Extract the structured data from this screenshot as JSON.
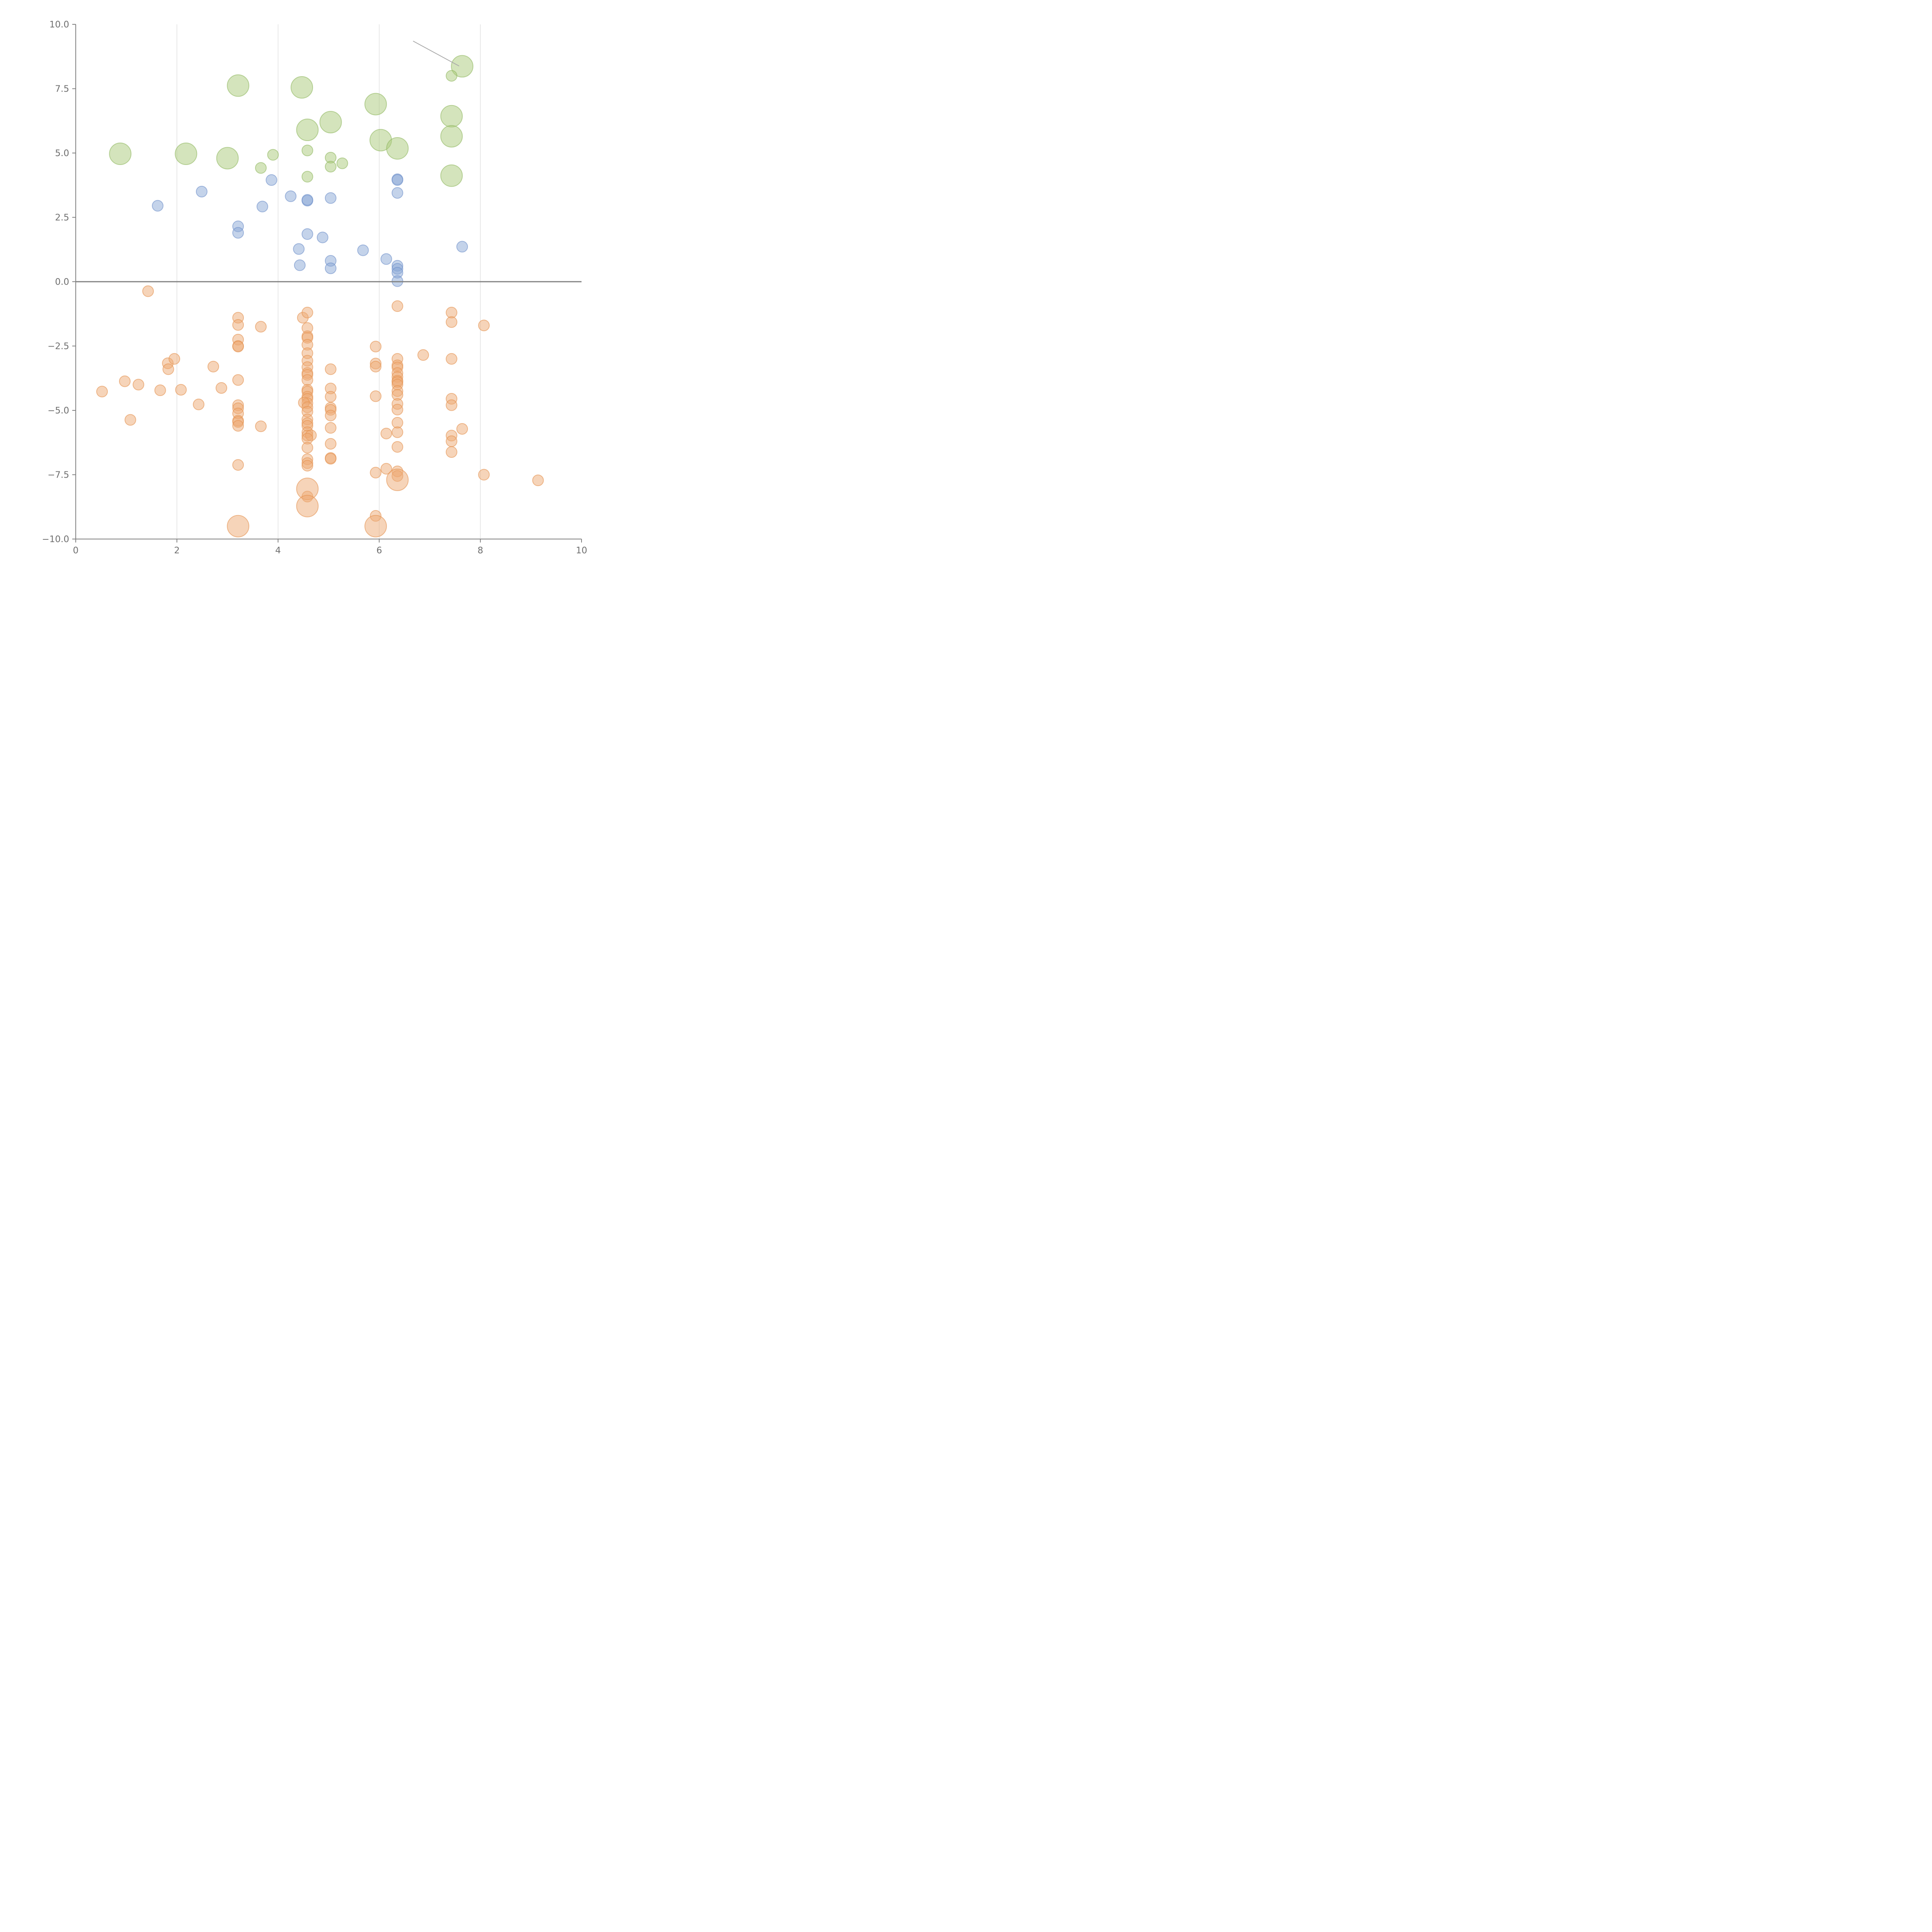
{
  "chart_data": {
    "type": "scatter",
    "title": "",
    "xlabel": "",
    "ylabel": "",
    "xlim": [
      0,
      10
    ],
    "ylim": [
      -10,
      10
    ],
    "grid": "vertical",
    "x_ticks": [
      0,
      2,
      4,
      6,
      8,
      10
    ],
    "y_ticks": [
      10,
      7.5,
      5,
      2.5,
      0,
      -2.5,
      -5,
      -7.5,
      -10
    ],
    "x_tick_labels": [
      "0",
      "2",
      "4",
      "6",
      "8",
      "10"
    ],
    "y_tick_labels": [
      "10.0",
      "7.5",
      "5.0",
      "2.5",
      "0.0",
      "−2.5",
      "−5.0",
      "−7.5",
      "−10.0"
    ],
    "series": [
      {
        "name": "green",
        "fill": "#a9c97a",
        "stroke": "#8fb85f",
        "points": [
          {
            "x": 0.88,
            "y": 4.97,
            "s": 3
          },
          {
            "x": 2.18,
            "y": 4.97,
            "s": 3
          },
          {
            "x": 3.0,
            "y": 4.8,
            "s": 3
          },
          {
            "x": 3.21,
            "y": 7.62,
            "s": 3
          },
          {
            "x": 4.47,
            "y": 7.55,
            "s": 3
          },
          {
            "x": 4.58,
            "y": 5.9,
            "s": 3
          },
          {
            "x": 5.04,
            "y": 6.2,
            "s": 3
          },
          {
            "x": 5.93,
            "y": 6.9,
            "s": 3
          },
          {
            "x": 6.03,
            "y": 5.5,
            "s": 3
          },
          {
            "x": 6.36,
            "y": 5.18,
            "s": 3
          },
          {
            "x": 7.43,
            "y": 6.43,
            "s": 3
          },
          {
            "x": 7.43,
            "y": 5.65,
            "s": 3
          },
          {
            "x": 7.43,
            "y": 4.12,
            "s": 3
          },
          {
            "x": 7.64,
            "y": 8.37,
            "s": 3
          },
          {
            "x": 7.43,
            "y": 8.0,
            "s": 1
          },
          {
            "x": 3.9,
            "y": 4.93,
            "s": 1
          },
          {
            "x": 3.66,
            "y": 4.42,
            "s": 1
          },
          {
            "x": 4.58,
            "y": 5.1,
            "s": 1
          },
          {
            "x": 4.58,
            "y": 4.08,
            "s": 1
          },
          {
            "x": 5.04,
            "y": 4.82,
            "s": 1
          },
          {
            "x": 5.04,
            "y": 4.47,
            "s": 1
          },
          {
            "x": 5.27,
            "y": 4.6,
            "s": 1
          }
        ]
      },
      {
        "name": "blue",
        "fill": "#8aa8d6",
        "stroke": "#6e90c9",
        "points": [
          {
            "x": 1.62,
            "y": 2.95,
            "s": 1
          },
          {
            "x": 2.49,
            "y": 3.5,
            "s": 1
          },
          {
            "x": 3.21,
            "y": 2.15,
            "s": 1
          },
          {
            "x": 3.21,
            "y": 1.9,
            "s": 1
          },
          {
            "x": 3.69,
            "y": 2.92,
            "s": 1
          },
          {
            "x": 3.87,
            "y": 3.95,
            "s": 1
          },
          {
            "x": 4.25,
            "y": 3.32,
            "s": 1
          },
          {
            "x": 4.58,
            "y": 3.15,
            "s": 1
          },
          {
            "x": 4.58,
            "y": 3.18,
            "s": 1
          },
          {
            "x": 4.58,
            "y": 1.85,
            "s": 1
          },
          {
            "x": 4.88,
            "y": 1.72,
            "s": 1
          },
          {
            "x": 4.41,
            "y": 1.27,
            "s": 1
          },
          {
            "x": 4.43,
            "y": 0.64,
            "s": 1
          },
          {
            "x": 5.04,
            "y": 3.25,
            "s": 1
          },
          {
            "x": 5.04,
            "y": 0.81,
            "s": 1
          },
          {
            "x": 5.04,
            "y": 0.52,
            "s": 1
          },
          {
            "x": 5.68,
            "y": 1.22,
            "s": 1
          },
          {
            "x": 6.14,
            "y": 0.88,
            "s": 1
          },
          {
            "x": 6.36,
            "y": 3.98,
            "s": 1
          },
          {
            "x": 6.36,
            "y": 3.95,
            "s": 1
          },
          {
            "x": 6.36,
            "y": 3.45,
            "s": 1
          },
          {
            "x": 6.36,
            "y": 0.62,
            "s": 1
          },
          {
            "x": 6.36,
            "y": 0.5,
            "s": 1
          },
          {
            "x": 6.36,
            "y": 0.35,
            "s": 1
          },
          {
            "x": 6.36,
            "y": 0.02,
            "s": 1
          },
          {
            "x": 7.64,
            "y": 1.36,
            "s": 1
          }
        ]
      },
      {
        "name": "orange",
        "fill": "#eeaa73",
        "stroke": "#e5914f",
        "points": [
          {
            "x": 1.43,
            "y": -0.37,
            "s": 1
          },
          {
            "x": 0.52,
            "y": -4.27,
            "s": 1
          },
          {
            "x": 0.97,
            "y": -3.87,
            "s": 1
          },
          {
            "x": 1.24,
            "y": -4.0,
            "s": 1
          },
          {
            "x": 1.08,
            "y": -5.37,
            "s": 1
          },
          {
            "x": 1.67,
            "y": -4.22,
            "s": 1
          },
          {
            "x": 1.82,
            "y": -3.17,
            "s": 1
          },
          {
            "x": 1.83,
            "y": -3.4,
            "s": 1
          },
          {
            "x": 1.95,
            "y": -3.0,
            "s": 1
          },
          {
            "x": 2.08,
            "y": -4.2,
            "s": 1
          },
          {
            "x": 2.43,
            "y": -4.77,
            "s": 1
          },
          {
            "x": 2.72,
            "y": -3.3,
            "s": 1
          },
          {
            "x": 2.88,
            "y": -4.13,
            "s": 1
          },
          {
            "x": 3.21,
            "y": -1.4,
            "s": 1
          },
          {
            "x": 3.21,
            "y": -1.68,
            "s": 1
          },
          {
            "x": 3.21,
            "y": -2.25,
            "s": 1
          },
          {
            "x": 3.21,
            "y": -2.5,
            "s": 1
          },
          {
            "x": 3.21,
            "y": -2.52,
            "s": 1
          },
          {
            "x": 3.21,
            "y": -3.82,
            "s": 1
          },
          {
            "x": 3.21,
            "y": -4.8,
            "s": 1
          },
          {
            "x": 3.21,
            "y": -4.92,
            "s": 1
          },
          {
            "x": 3.21,
            "y": -5.12,
            "s": 1
          },
          {
            "x": 3.21,
            "y": -5.4,
            "s": 1
          },
          {
            "x": 3.21,
            "y": -5.45,
            "s": 1
          },
          {
            "x": 3.21,
            "y": -5.6,
            "s": 1
          },
          {
            "x": 3.21,
            "y": -7.12,
            "s": 1
          },
          {
            "x": 3.66,
            "y": -1.75,
            "s": 1
          },
          {
            "x": 3.66,
            "y": -5.62,
            "s": 1
          },
          {
            "x": 4.49,
            "y": -1.4,
            "s": 1
          },
          {
            "x": 4.58,
            "y": -1.2,
            "s": 1
          },
          {
            "x": 4.58,
            "y": -1.8,
            "s": 1
          },
          {
            "x": 4.58,
            "y": -2.12,
            "s": 1
          },
          {
            "x": 4.58,
            "y": -2.18,
            "s": 1
          },
          {
            "x": 4.58,
            "y": -2.45,
            "s": 1
          },
          {
            "x": 4.58,
            "y": -2.78,
            "s": 1
          },
          {
            "x": 4.58,
            "y": -3.07,
            "s": 1
          },
          {
            "x": 4.58,
            "y": -3.32,
            "s": 1
          },
          {
            "x": 4.58,
            "y": -3.55,
            "s": 1
          },
          {
            "x": 4.58,
            "y": -3.62,
            "s": 1
          },
          {
            "x": 4.58,
            "y": -3.82,
            "s": 1
          },
          {
            "x": 4.58,
            "y": -4.2,
            "s": 1
          },
          {
            "x": 4.58,
            "y": -4.27,
            "s": 1
          },
          {
            "x": 4.58,
            "y": -4.47,
            "s": 1
          },
          {
            "x": 4.58,
            "y": -4.55,
            "s": 1
          },
          {
            "x": 4.58,
            "y": -4.72,
            "s": 1
          },
          {
            "x": 4.51,
            "y": -4.7,
            "s": 1
          },
          {
            "x": 4.58,
            "y": -4.88,
            "s": 1
          },
          {
            "x": 4.58,
            "y": -5.05,
            "s": 1
          },
          {
            "x": 4.58,
            "y": -5.35,
            "s": 1
          },
          {
            "x": 4.58,
            "y": -5.5,
            "s": 1
          },
          {
            "x": 4.58,
            "y": -5.6,
            "s": 1
          },
          {
            "x": 4.58,
            "y": -5.85,
            "s": 1
          },
          {
            "x": 4.58,
            "y": -5.98,
            "s": 1
          },
          {
            "x": 4.65,
            "y": -5.97,
            "s": 1
          },
          {
            "x": 4.58,
            "y": -6.1,
            "s": 1
          },
          {
            "x": 4.58,
            "y": -6.45,
            "s": 1
          },
          {
            "x": 4.58,
            "y": -6.9,
            "s": 1
          },
          {
            "x": 4.58,
            "y": -7.05,
            "s": 1
          },
          {
            "x": 4.58,
            "y": -7.15,
            "s": 1
          },
          {
            "x": 4.58,
            "y": -8.35,
            "s": 1
          },
          {
            "x": 5.04,
            "y": -3.4,
            "s": 1
          },
          {
            "x": 5.04,
            "y": -4.15,
            "s": 1
          },
          {
            "x": 5.04,
            "y": -4.47,
            "s": 1
          },
          {
            "x": 5.04,
            "y": -4.9,
            "s": 1
          },
          {
            "x": 5.04,
            "y": -4.98,
            "s": 1
          },
          {
            "x": 5.04,
            "y": -5.2,
            "s": 1
          },
          {
            "x": 5.04,
            "y": -5.68,
            "s": 1
          },
          {
            "x": 5.04,
            "y": -6.3,
            "s": 1
          },
          {
            "x": 5.04,
            "y": -6.85,
            "s": 1
          },
          {
            "x": 5.04,
            "y": -6.88,
            "s": 1
          },
          {
            "x": 5.93,
            "y": -2.52,
            "s": 1
          },
          {
            "x": 5.93,
            "y": -3.18,
            "s": 1
          },
          {
            "x": 5.93,
            "y": -3.3,
            "s": 1
          },
          {
            "x": 5.93,
            "y": -4.45,
            "s": 1
          },
          {
            "x": 5.93,
            "y": -7.42,
            "s": 1
          },
          {
            "x": 5.93,
            "y": -9.1,
            "s": 1
          },
          {
            "x": 6.14,
            "y": -5.9,
            "s": 1
          },
          {
            "x": 6.14,
            "y": -7.27,
            "s": 1
          },
          {
            "x": 6.36,
            "y": -0.95,
            "s": 1
          },
          {
            "x": 6.36,
            "y": -3.0,
            "s": 1
          },
          {
            "x": 6.36,
            "y": -3.25,
            "s": 1
          },
          {
            "x": 6.36,
            "y": -3.33,
            "s": 1
          },
          {
            "x": 6.36,
            "y": -3.55,
            "s": 1
          },
          {
            "x": 6.36,
            "y": -3.7,
            "s": 1
          },
          {
            "x": 6.36,
            "y": -3.85,
            "s": 1
          },
          {
            "x": 6.36,
            "y": -3.9,
            "s": 1
          },
          {
            "x": 6.36,
            "y": -4.0,
            "s": 1
          },
          {
            "x": 6.36,
            "y": -4.25,
            "s": 1
          },
          {
            "x": 6.36,
            "y": -4.4,
            "s": 1
          },
          {
            "x": 6.36,
            "y": -4.75,
            "s": 1
          },
          {
            "x": 6.36,
            "y": -4.97,
            "s": 1
          },
          {
            "x": 6.36,
            "y": -5.48,
            "s": 1
          },
          {
            "x": 6.36,
            "y": -5.85,
            "s": 1
          },
          {
            "x": 6.36,
            "y": -6.42,
            "s": 1
          },
          {
            "x": 6.36,
            "y": -7.37,
            "s": 1
          },
          {
            "x": 6.36,
            "y": -7.55,
            "s": 1
          },
          {
            "x": 6.87,
            "y": -2.85,
            "s": 1
          },
          {
            "x": 7.43,
            "y": -1.2,
            "s": 1
          },
          {
            "x": 7.43,
            "y": -1.57,
            "s": 1
          },
          {
            "x": 7.43,
            "y": -3.0,
            "s": 1
          },
          {
            "x": 7.43,
            "y": -4.55,
            "s": 1
          },
          {
            "x": 7.43,
            "y": -4.8,
            "s": 1
          },
          {
            "x": 7.43,
            "y": -5.98,
            "s": 1
          },
          {
            "x": 7.43,
            "y": -6.2,
            "s": 1
          },
          {
            "x": 7.43,
            "y": -6.62,
            "s": 1
          },
          {
            "x": 7.64,
            "y": -5.72,
            "s": 1
          },
          {
            "x": 8.07,
            "y": -1.7,
            "s": 1
          },
          {
            "x": 8.07,
            "y": -7.5,
            "s": 1
          },
          {
            "x": 9.14,
            "y": -7.72,
            "s": 1
          },
          {
            "x": 4.58,
            "y": -8.05,
            "s": 3
          },
          {
            "x": 4.58,
            "y": -8.72,
            "s": 3
          },
          {
            "x": 6.36,
            "y": -7.7,
            "s": 3
          },
          {
            "x": 3.21,
            "y": -9.5,
            "s": 3
          },
          {
            "x": 5.93,
            "y": -9.5,
            "s": 3
          }
        ]
      }
    ],
    "annotation_line": {
      "from": [
        6.67,
        9.35
      ],
      "to": [
        7.58,
        8.38
      ]
    }
  }
}
